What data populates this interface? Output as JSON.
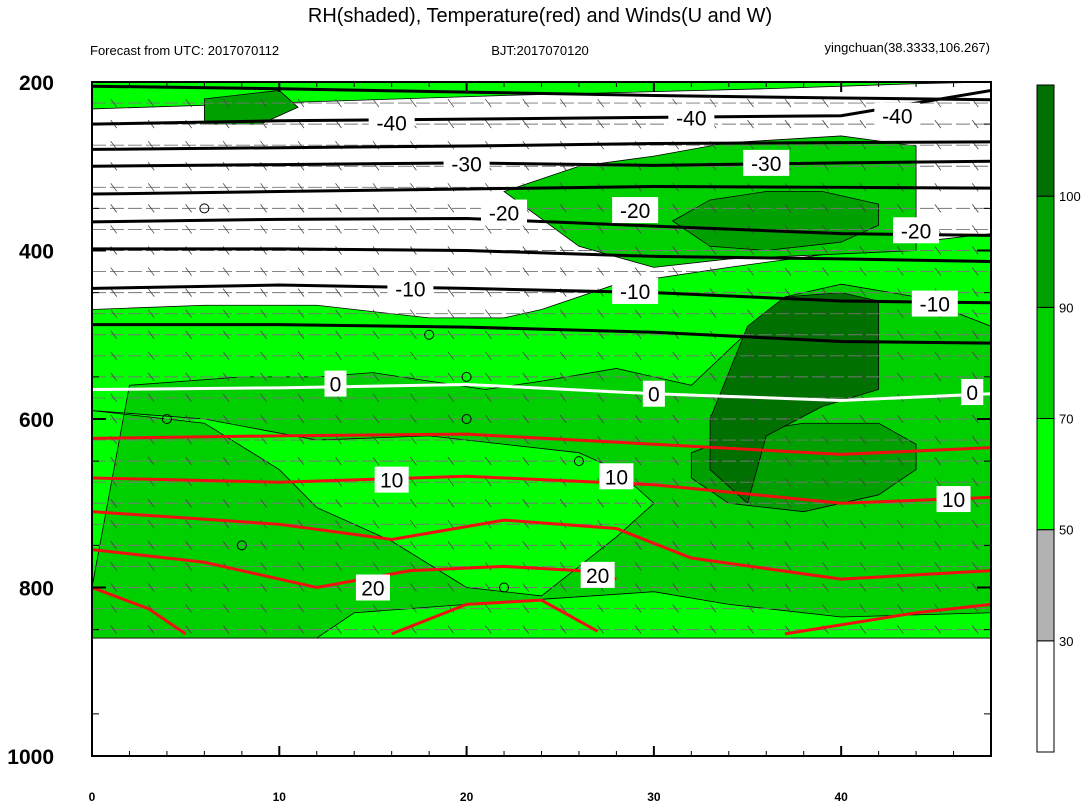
{
  "chart_data": {
    "type": "heatmap",
    "title": "RH(shaded), Temperature(red) and Winds(U and W)",
    "subtitle_left": "Forecast from UTC: 2017070112",
    "subtitle_center": "BJT:2017070120",
    "subtitle_right": "yingchuan(38.3333,106.267)",
    "xlim": [
      0,
      48
    ],
    "ylim": [
      1000,
      200
    ],
    "y_reversed": true,
    "x_ticks": [
      0,
      10,
      20,
      30,
      40
    ],
    "y_ticks": [
      200,
      400,
      600,
      800,
      1000
    ],
    "grid": false,
    "colorbar": {
      "levels": [
        30,
        50,
        70,
        90,
        100
      ],
      "colors": [
        "#ffffff",
        "#b2b2b2",
        "#00ff00",
        "#00d000",
        "#00a000",
        "#007000"
      ]
    },
    "rh_regions": [
      {
        "level": 50,
        "poly": [
          [
            0,
            200
          ],
          [
            48,
            200
          ],
          [
            48,
            860
          ],
          [
            0,
            860
          ]
        ]
      },
      {
        "level": 0,
        "poly": [
          [
            0,
            232
          ],
          [
            22,
            216
          ],
          [
            36,
            208
          ],
          [
            44,
            202
          ],
          [
            48,
            200
          ],
          [
            48,
            380
          ],
          [
            44,
            390
          ],
          [
            34,
            420
          ],
          [
            28,
            440
          ],
          [
            24,
            470
          ],
          [
            22,
            480
          ],
          [
            18,
            480
          ],
          [
            12,
            465
          ],
          [
            6,
            465
          ],
          [
            0,
            470
          ]
        ]
      },
      {
        "level": 70,
        "poly": [
          [
            2,
            560
          ],
          [
            8,
            550
          ],
          [
            12,
            550
          ],
          [
            15,
            545
          ],
          [
            18,
            555
          ],
          [
            21,
            565
          ],
          [
            24,
            555
          ],
          [
            28,
            540
          ],
          [
            32,
            560
          ],
          [
            37,
            455
          ],
          [
            40,
            440
          ],
          [
            44,
            455
          ],
          [
            48,
            490
          ],
          [
            48,
            830
          ],
          [
            40,
            835
          ],
          [
            34,
            820
          ],
          [
            30,
            805
          ],
          [
            20,
            820
          ],
          [
            14,
            830
          ],
          [
            12,
            860
          ],
          [
            0,
            860
          ],
          [
            0,
            800
          ]
        ]
      },
      {
        "level": 70,
        "poly": [
          [
            22,
            330
          ],
          [
            26,
            300
          ],
          [
            30,
            288
          ],
          [
            34,
            272
          ],
          [
            40,
            264
          ],
          [
            44,
            276
          ],
          [
            44,
            400
          ],
          [
            34,
            410
          ],
          [
            30,
            420
          ],
          [
            26,
            395
          ]
        ]
      },
      {
        "level": 50,
        "poly": [
          [
            0,
            590
          ],
          [
            6,
            605
          ],
          [
            10,
            660
          ],
          [
            12,
            705
          ],
          [
            16,
            745
          ],
          [
            20,
            800
          ],
          [
            24,
            810
          ],
          [
            28,
            740
          ],
          [
            30,
            700
          ],
          [
            28,
            660
          ],
          [
            26,
            640
          ],
          [
            22,
            630
          ],
          [
            18,
            620
          ],
          [
            12,
            625
          ],
          [
            6,
            600
          ]
        ]
      },
      {
        "level": 90,
        "poly": [
          [
            6,
            220
          ],
          [
            8,
            215
          ],
          [
            10,
            210
          ],
          [
            11,
            230
          ],
          [
            9,
            250
          ],
          [
            6,
            250
          ]
        ]
      },
      {
        "level": 90,
        "poly": [
          [
            31,
            365
          ],
          [
            33,
            340
          ],
          [
            36,
            330
          ],
          [
            39,
            330
          ],
          [
            42,
            345
          ],
          [
            42,
            370
          ],
          [
            40,
            390
          ],
          [
            36,
            400
          ],
          [
            33,
            395
          ]
        ]
      },
      {
        "level": 90,
        "poly": [
          [
            32,
            640
          ],
          [
            35,
            615
          ],
          [
            38,
            605
          ],
          [
            42,
            605
          ],
          [
            44,
            630
          ],
          [
            44,
            660
          ],
          [
            42,
            690
          ],
          [
            38,
            710
          ],
          [
            34,
            700
          ],
          [
            32,
            670
          ]
        ]
      },
      {
        "level": 100,
        "poly": [
          [
            35,
            490
          ],
          [
            37,
            455
          ],
          [
            40,
            450
          ],
          [
            42,
            460
          ],
          [
            42,
            565
          ],
          [
            39,
            585
          ],
          [
            36,
            620
          ],
          [
            35,
            700
          ],
          [
            33,
            660
          ],
          [
            33,
            600
          ]
        ]
      }
    ],
    "temperature_contours": [
      {
        "value": -40,
        "color": "black",
        "points": [
          [
            0,
            205
          ],
          [
            10,
            208
          ],
          [
            20,
            212
          ],
          [
            30,
            216
          ],
          [
            40,
            219
          ],
          [
            48,
            221
          ]
        ]
      },
      {
        "value": -40,
        "color": "black",
        "points": [
          [
            0,
            250
          ],
          [
            10,
            246
          ],
          [
            20,
            244
          ],
          [
            30,
            242
          ],
          [
            40,
            240
          ],
          [
            48,
            210
          ]
        ]
      },
      {
        "value": -30,
        "color": "black",
        "points": [
          [
            0,
            280
          ],
          [
            10,
            278
          ],
          [
            20,
            276
          ],
          [
            30,
            273
          ],
          [
            40,
            272
          ],
          [
            48,
            271
          ]
        ]
      },
      {
        "value": -30,
        "color": "black",
        "points": [
          [
            0,
            300
          ],
          [
            10,
            298
          ],
          [
            20,
            296
          ],
          [
            30,
            299
          ],
          [
            40,
            296
          ],
          [
            48,
            294
          ]
        ]
      },
      {
        "value": -20,
        "color": "black",
        "points": [
          [
            0,
            333
          ],
          [
            10,
            330
          ],
          [
            20,
            327
          ],
          [
            30,
            324
          ],
          [
            40,
            325
          ],
          [
            48,
            326
          ]
        ]
      },
      {
        "value": -20,
        "color": "black",
        "points": [
          [
            0,
            366
          ],
          [
            10,
            363
          ],
          [
            20,
            362
          ],
          [
            30,
            371
          ],
          [
            40,
            380
          ],
          [
            48,
            382
          ]
        ]
      },
      {
        "value": -20,
        "color": "black",
        "points": [
          [
            0,
            398
          ],
          [
            10,
            398
          ],
          [
            20,
            400
          ],
          [
            30,
            407
          ],
          [
            40,
            410
          ],
          [
            48,
            413
          ]
        ]
      },
      {
        "value": -10,
        "color": "black",
        "points": [
          [
            0,
            445
          ],
          [
            10,
            441
          ],
          [
            20,
            445
          ],
          [
            30,
            450
          ],
          [
            40,
            460
          ],
          [
            48,
            462
          ]
        ]
      },
      {
        "value": -10,
        "color": "black",
        "points": [
          [
            0,
            488
          ],
          [
            10,
            488
          ],
          [
            20,
            491
          ],
          [
            30,
            497
          ],
          [
            40,
            508
          ],
          [
            48,
            510
          ]
        ]
      },
      {
        "value": 0,
        "color": "white",
        "points": [
          [
            0,
            565
          ],
          [
            10,
            563
          ],
          [
            20,
            559
          ],
          [
            30,
            570
          ],
          [
            40,
            578
          ],
          [
            48,
            570
          ]
        ]
      },
      {
        "value": 10,
        "color": "red",
        "points": [
          [
            0,
            623
          ],
          [
            10,
            620
          ],
          [
            20,
            618
          ],
          [
            30,
            630
          ],
          [
            40,
            642
          ],
          [
            48,
            634
          ]
        ]
      },
      {
        "value": 10,
        "color": "red",
        "points": [
          [
            0,
            670
          ],
          [
            10,
            675
          ],
          [
            20,
            668
          ],
          [
            30,
            678
          ],
          [
            40,
            700
          ],
          [
            48,
            693
          ]
        ]
      },
      {
        "value": 10,
        "color": "red",
        "points": [
          [
            0,
            710
          ],
          [
            10,
            725
          ],
          [
            16,
            743
          ],
          [
            22,
            720
          ],
          [
            28,
            730
          ],
          [
            32,
            765
          ],
          [
            40,
            790
          ],
          [
            48,
            780
          ]
        ]
      },
      {
        "value": 20,
        "color": "red",
        "points": [
          [
            0,
            755
          ],
          [
            6,
            770
          ],
          [
            12,
            800
          ],
          [
            17,
            780
          ],
          [
            22,
            775
          ],
          [
            26,
            780
          ],
          [
            28,
            790
          ]
        ]
      },
      {
        "value": 20,
        "color": "red",
        "points": [
          [
            0,
            800
          ],
          [
            3,
            825
          ],
          [
            5,
            855
          ]
        ]
      },
      {
        "value": 20,
        "color": "red",
        "points": [
          [
            16,
            855
          ],
          [
            20,
            820
          ],
          [
            24,
            815
          ],
          [
            27,
            852
          ]
        ]
      },
      {
        "value": 20,
        "color": "red",
        "points": [
          [
            37,
            855
          ],
          [
            44,
            830
          ],
          [
            48,
            820
          ]
        ]
      }
    ],
    "contour_labels": [
      {
        "text": "-40",
        "x": 16,
        "y": 248
      },
      {
        "text": "-40",
        "x": 32,
        "y": 242
      },
      {
        "text": "-40",
        "x": 43,
        "y": 240
      },
      {
        "text": "-30",
        "x": 20,
        "y": 297
      },
      {
        "text": "-30",
        "x": 36,
        "y": 296
      },
      {
        "text": "-20",
        "x": 22,
        "y": 355
      },
      {
        "text": "-20",
        "x": 29,
        "y": 352
      },
      {
        "text": "-20",
        "x": 44,
        "y": 376
      },
      {
        "text": "-10",
        "x": 17,
        "y": 445
      },
      {
        "text": "-10",
        "x": 29,
        "y": 448
      },
      {
        "text": "-10",
        "x": 45,
        "y": 463
      },
      {
        "text": "0",
        "x": 13,
        "y": 558
      },
      {
        "text": "0",
        "x": 30,
        "y": 570
      },
      {
        "text": "0",
        "x": 47,
        "y": 568
      },
      {
        "text": "10",
        "x": 16,
        "y": 672
      },
      {
        "text": "10",
        "x": 28,
        "y": 668
      },
      {
        "text": "10",
        "x": 46,
        "y": 695
      },
      {
        "text": "20",
        "x": 15,
        "y": 800
      },
      {
        "text": "20",
        "x": 27,
        "y": 785
      }
    ],
    "calm_points": [
      [
        6,
        350
      ],
      [
        18,
        500
      ],
      [
        4,
        600
      ],
      [
        20,
        600
      ],
      [
        20,
        550
      ],
      [
        26,
        650
      ],
      [
        8,
        750
      ],
      [
        22,
        800
      ]
    ]
  }
}
